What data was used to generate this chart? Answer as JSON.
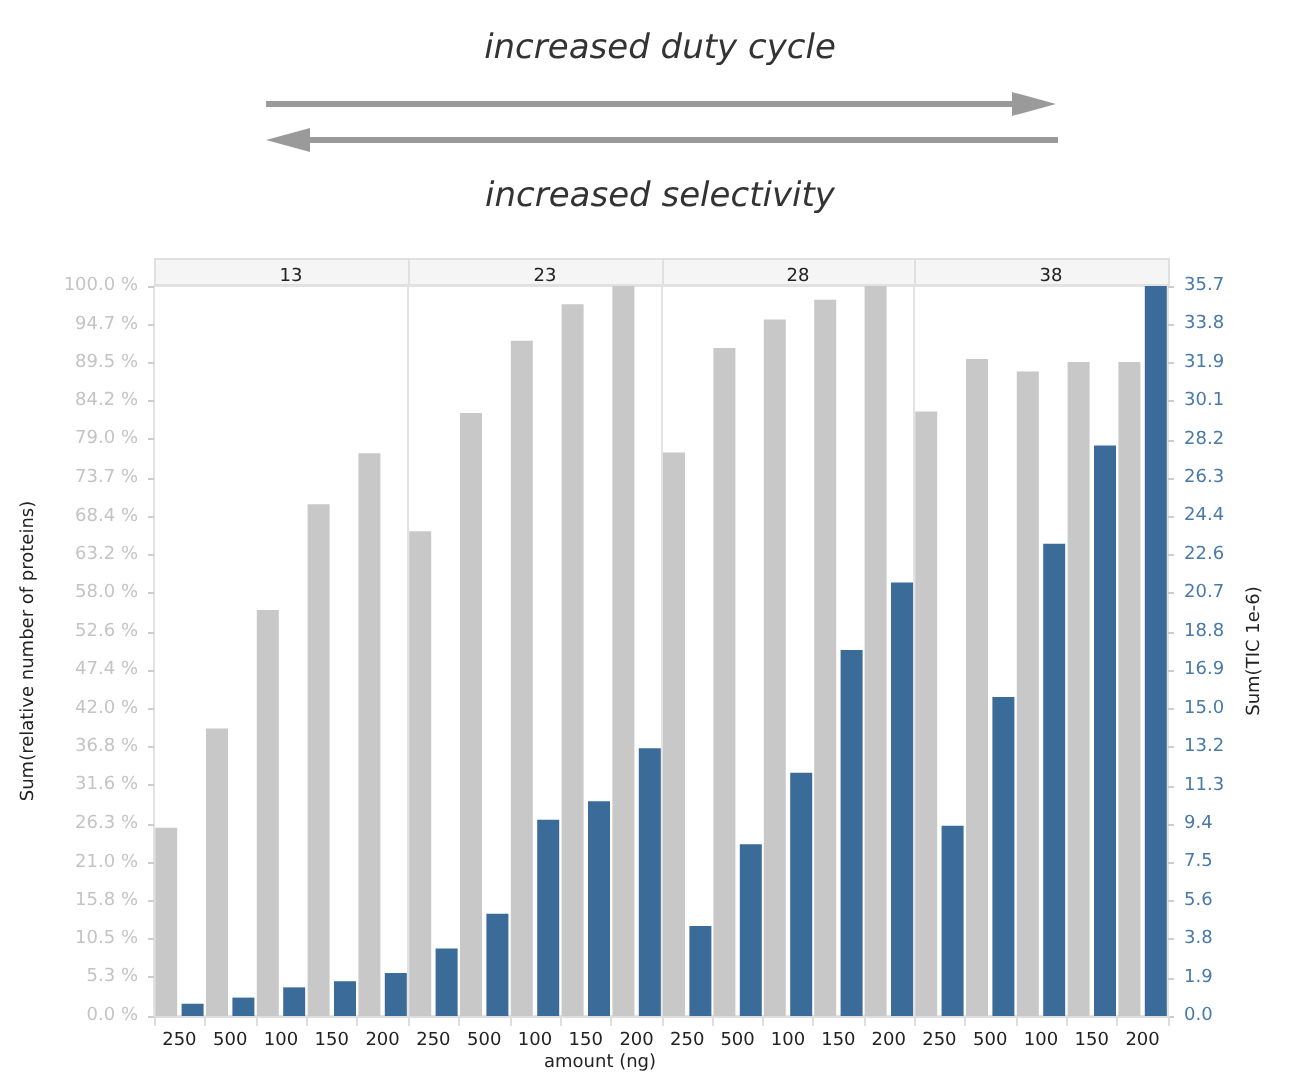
{
  "chart_data": [
    {
      "type": "bar",
      "title": "13",
      "ylabel": "Sum(relative number of proteins)",
      "annotations": [
        "increased duty cycle",
        "increased selectivity"
      ],
      "categories": [
        "250",
        "500",
        "100",
        "150",
        "200"
      ],
      "tick_labels": [
        "x",
        "y"
      ],
      "series": [
        {
          "color": "#c8c8c8",
          "values": [
            25.8,
            39.4,
            55.6,
            70.1,
            77.1
          ]
        },
        {
          "color": "#3a6b99",
          "axis": "y2",
          "values": [
            0.6,
            0.9,
            1.4,
            1.7,
            2.1
          ]
        }
      ],
      "ylim": [
        0,
        100
      ],
      "y2lim": [
        0,
        35.7
      ],
      "yticks": [
        {
          "value": 0,
          "label": "0.0 %"
        },
        {
          "value": 5.3,
          "label": "5.3 %"
        },
        {
          "value": 10.5,
          "label": "10.5 %"
        },
        {
          "value": 15.8,
          "label": "15.8 %"
        },
        {
          "value": 21.0,
          "label": "21.0 %"
        },
        {
          "value": 26.3,
          "label": "26.3 %"
        },
        {
          "value": 31.6,
          "label": "31.6 %"
        },
        {
          "value": 36.8,
          "label": "36.8 %"
        },
        {
          "value": 42.0,
          "label": "42.0 %"
        },
        {
          "value": 47.4,
          "label": "47.4 %"
        },
        {
          "value": 52.6,
          "label": "52.6 %"
        },
        {
          "value": 58.0,
          "label": "58.0 %"
        },
        {
          "value": 63.2,
          "label": "63.2 %"
        },
        {
          "value": 68.4,
          "label": "68.4 %"
        },
        {
          "value": 73.7,
          "label": "73.7 %"
        },
        {
          "value": 79.0,
          "label": "79.0 %"
        },
        {
          "value": 84.2,
          "label": "84.2 %"
        },
        {
          "value": 89.5,
          "label": "89.5 %"
        },
        {
          "value": 94.7,
          "label": "94.7 %"
        },
        {
          "value": 100,
          "label": "100.0 %"
        }
      ]
    },
    {
      "type": "bar",
      "title": "23",
      "xlabel": "amount (ng)",
      "categories": [
        "250",
        "500",
        "100",
        "150",
        "200"
      ],
      "tick_labels": [
        "x"
      ],
      "series": [
        {
          "color": "#c8c8c8",
          "values": [
            66.4,
            82.6,
            92.5,
            97.5,
            100
          ]
        },
        {
          "color": "#3a6b99",
          "axis": "y2",
          "values": [
            3.3,
            5.0,
            9.6,
            10.5,
            13.1
          ]
        }
      ],
      "ylim": [
        0,
        100
      ],
      "y2lim": [
        0,
        35.7
      ]
    },
    {
      "type": "bar",
      "title": "28",
      "categories": [
        "250",
        "500",
        "100",
        "150",
        "200"
      ],
      "tick_labels": [
        "x"
      ],
      "series": [
        {
          "color": "#c8c8c8",
          "values": [
            77.2,
            91.5,
            95.4,
            98.1,
            100
          ]
        },
        {
          "color": "#3a6b99",
          "axis": "y2",
          "values": [
            4.4,
            8.4,
            11.9,
            17.9,
            21.2
          ]
        }
      ],
      "ylim": [
        0,
        100
      ],
      "y2lim": [
        0,
        35.7
      ]
    },
    {
      "type": "bar",
      "title": "38",
      "y2label": "Sum(TIC 1e-6)",
      "categories": [
        "250",
        "500",
        "100",
        "150",
        "200"
      ],
      "tick_labels": [
        "x",
        "y2"
      ],
      "series": [
        {
          "color": "#c8c8c8",
          "values": [
            82.8,
            90.0,
            88.3,
            89.6,
            89.6
          ]
        },
        {
          "color": "#3a6b99",
          "axis": "y2",
          "values": [
            9.3,
            15.6,
            23.1,
            27.9,
            35.7
          ]
        }
      ],
      "ylim": [
        0,
        100
      ],
      "y2lim": [
        0,
        35.7
      ],
      "y2ticks": [
        {
          "value": 0,
          "label": "0.0"
        },
        {
          "value": 1.88,
          "label": "1.9"
        },
        {
          "value": 3.76,
          "label": "3.8"
        },
        {
          "value": 5.64,
          "label": "5.6"
        },
        {
          "value": 7.52,
          "label": "7.5"
        },
        {
          "value": 9.39,
          "label": "9.4"
        },
        {
          "value": 11.27,
          "label": "11.3"
        },
        {
          "value": 13.15,
          "label": "13.2"
        },
        {
          "value": 15.03,
          "label": "15.0"
        },
        {
          "value": 16.91,
          "label": "16.9"
        },
        {
          "value": 18.79,
          "label": "18.8"
        },
        {
          "value": 20.67,
          "label": "20.7"
        },
        {
          "value": 22.55,
          "label": "22.6"
        },
        {
          "value": 24.43,
          "label": "24.4"
        },
        {
          "value": 26.31,
          "label": "26.3"
        },
        {
          "value": 28.18,
          "label": "28.2"
        },
        {
          "value": 30.06,
          "label": "30.1"
        },
        {
          "value": 31.94,
          "label": "31.9"
        },
        {
          "value": 33.82,
          "label": "33.8"
        },
        {
          "value": 35.7,
          "label": "35.7"
        }
      ]
    }
  ]
}
